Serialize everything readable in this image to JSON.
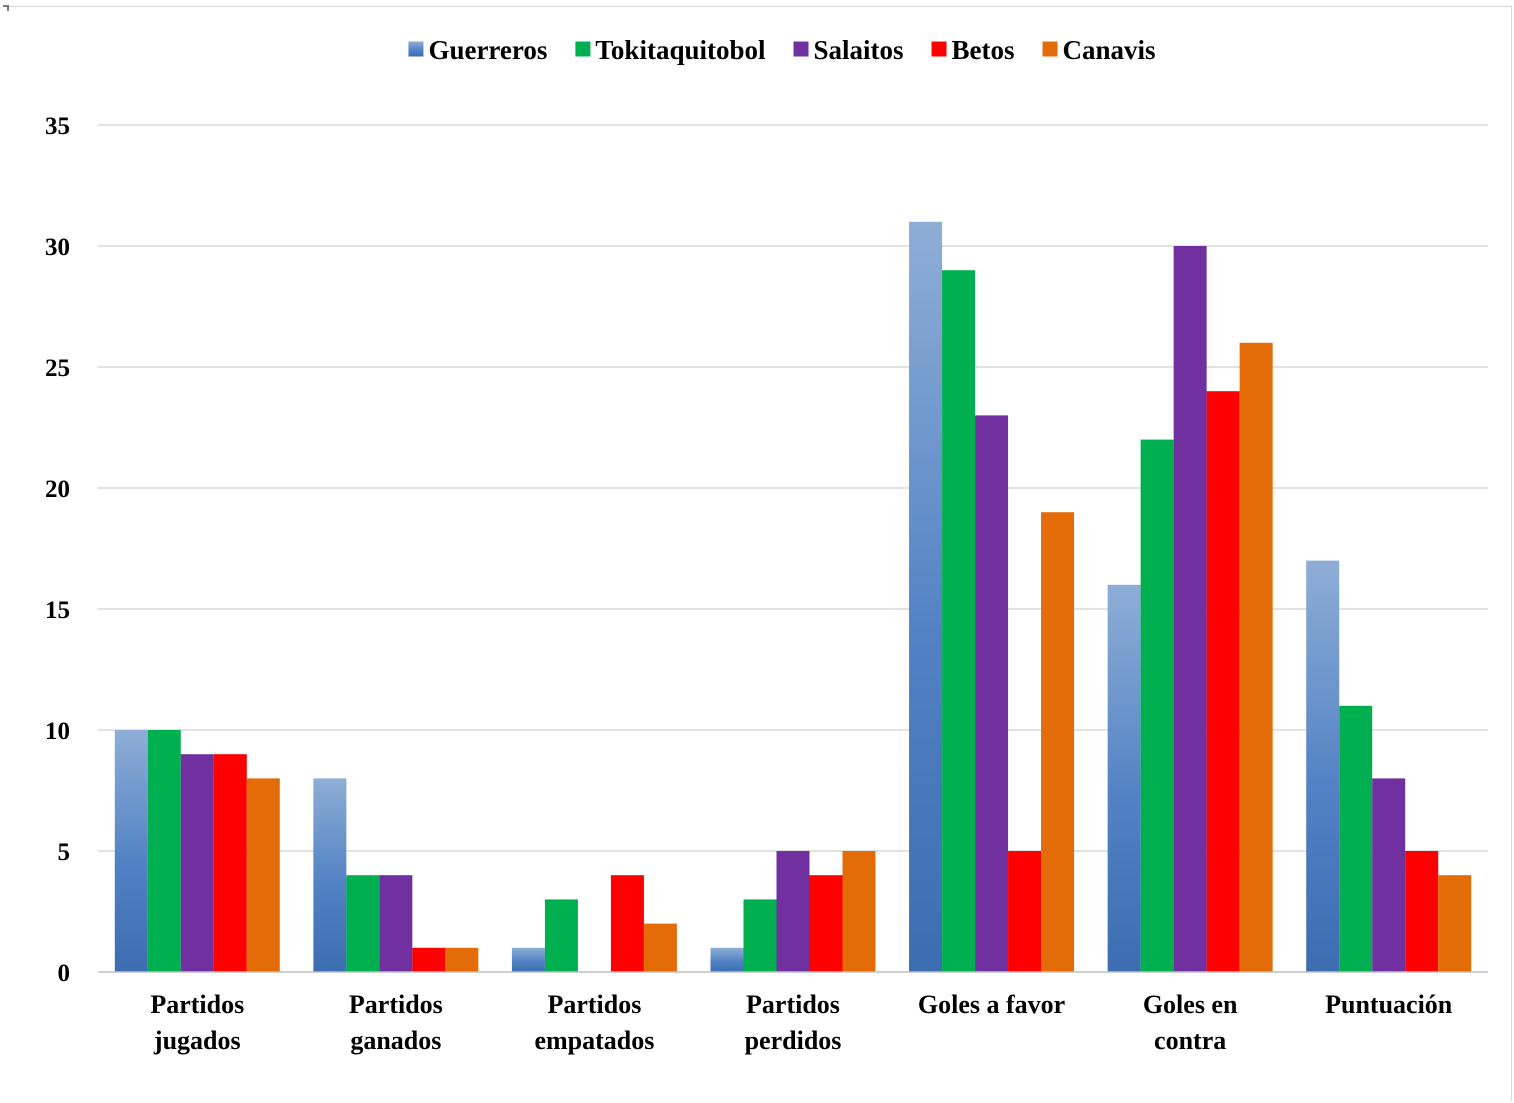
{
  "chart_data": {
    "type": "bar",
    "title": "",
    "xlabel": "",
    "ylabel": "",
    "categories": [
      [
        "Partidos",
        "jugados"
      ],
      [
        "Partidos",
        "ganados"
      ],
      [
        "Partidos",
        "empatados"
      ],
      [
        "Partidos",
        "perdidos"
      ],
      [
        "Goles a favor"
      ],
      [
        "Goles en",
        "contra"
      ],
      [
        "Puntuación"
      ]
    ],
    "series": [
      {
        "name": "Guerreros",
        "color": "#4a7ebb",
        "gradient": true,
        "values": [
          10,
          8,
          1,
          1,
          31,
          16,
          17
        ]
      },
      {
        "name": "Tokitaquitobol",
        "color": "#00b050",
        "values": [
          10,
          4,
          3,
          3,
          29,
          22,
          11
        ]
      },
      {
        "name": "Salaitos",
        "color": "#7030a0",
        "values": [
          9,
          4,
          0,
          5,
          23,
          30,
          8
        ]
      },
      {
        "name": "Betos",
        "color": "#ff0000",
        "values": [
          9,
          1,
          4,
          4,
          5,
          24,
          5
        ]
      },
      {
        "name": "Canavis",
        "color": "#e36c09",
        "values": [
          8,
          1,
          2,
          5,
          19,
          26,
          4
        ]
      }
    ],
    "ylim": [
      0,
      35
    ],
    "yticks": [
      0,
      5,
      10,
      15,
      20,
      25,
      30,
      35
    ],
    "grid": true,
    "legend_position": "top"
  }
}
